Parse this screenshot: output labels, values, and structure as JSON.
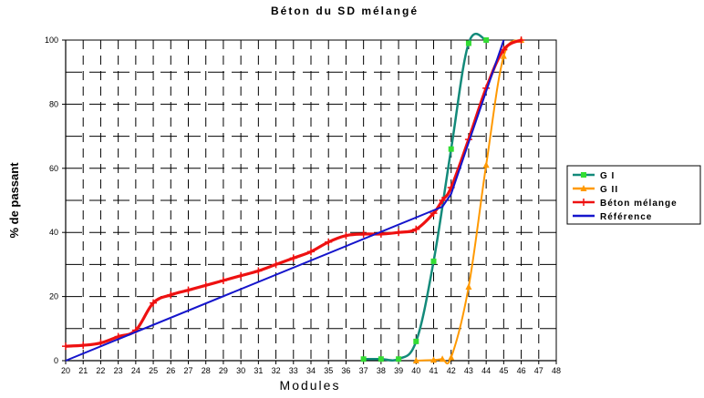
{
  "chart_data": {
    "type": "line",
    "title": "Béton du SD mélangé",
    "xlabel": "Modules",
    "ylabel": "% de passant",
    "xlim": [
      20,
      48
    ],
    "ylim": [
      0,
      100
    ],
    "xticks": [
      "20",
      "21",
      "22",
      "23",
      "24",
      "25",
      "26",
      "27",
      "28",
      "29",
      "30",
      "31",
      "32",
      "33",
      "34",
      "35",
      "36",
      "37",
      "38",
      "39",
      "40",
      "41",
      "42",
      "43",
      "44",
      "45",
      "46",
      "47",
      "48"
    ],
    "yticks": [
      "0",
      "20",
      "40",
      "60",
      "80",
      "100"
    ],
    "grid": true,
    "legend_position": "right",
    "series": [
      {
        "name": "G I",
        "color": "#138a7a",
        "marker": "square",
        "marker_color": "#33dd33",
        "points": [
          [
            37,
            0.5
          ],
          [
            38,
            0.5
          ],
          [
            39,
            0.5
          ],
          [
            40,
            6
          ],
          [
            41,
            31
          ],
          [
            42,
            66
          ],
          [
            43,
            99
          ],
          [
            44,
            100
          ]
        ]
      },
      {
        "name": "G II",
        "color": "#ff9900",
        "marker": "triangle",
        "marker_color": "#ff9900",
        "points": [
          [
            40,
            0
          ],
          [
            41,
            0.2
          ],
          [
            41.5,
            0.5
          ],
          [
            42,
            1
          ],
          [
            43,
            23
          ],
          [
            44,
            61
          ],
          [
            45,
            95
          ],
          [
            46,
            100
          ]
        ]
      },
      {
        "name": "Béton mélange",
        "color": "#ee1111",
        "marker": "plus",
        "marker_color": "#ee1111",
        "points": [
          [
            20,
            4.5
          ],
          [
            21,
            4.8
          ],
          [
            22,
            5.5
          ],
          [
            23,
            7.5
          ],
          [
            24,
            9.5
          ],
          [
            25,
            18
          ],
          [
            26,
            20.5
          ],
          [
            27,
            22
          ],
          [
            28,
            23.5
          ],
          [
            29,
            25
          ],
          [
            30,
            26.5
          ],
          [
            31,
            28
          ],
          [
            32,
            30
          ],
          [
            33,
            32
          ],
          [
            34,
            34
          ],
          [
            35,
            37
          ],
          [
            36,
            39
          ],
          [
            37,
            39.5
          ],
          [
            38,
            39.5
          ],
          [
            39,
            40
          ],
          [
            40,
            41
          ],
          [
            41,
            46
          ],
          [
            41.5,
            50
          ],
          [
            42,
            54
          ],
          [
            43,
            69
          ],
          [
            44,
            85
          ],
          [
            45,
            97
          ],
          [
            46,
            100
          ]
        ]
      },
      {
        "name": "Référence",
        "color": "#1515cc",
        "marker": "none",
        "marker_color": "#1515cc",
        "points": [
          [
            20,
            0
          ],
          [
            41.5,
            48
          ],
          [
            42,
            52
          ],
          [
            43,
            68
          ],
          [
            44,
            84
          ],
          [
            45,
            100
          ]
        ]
      }
    ]
  }
}
